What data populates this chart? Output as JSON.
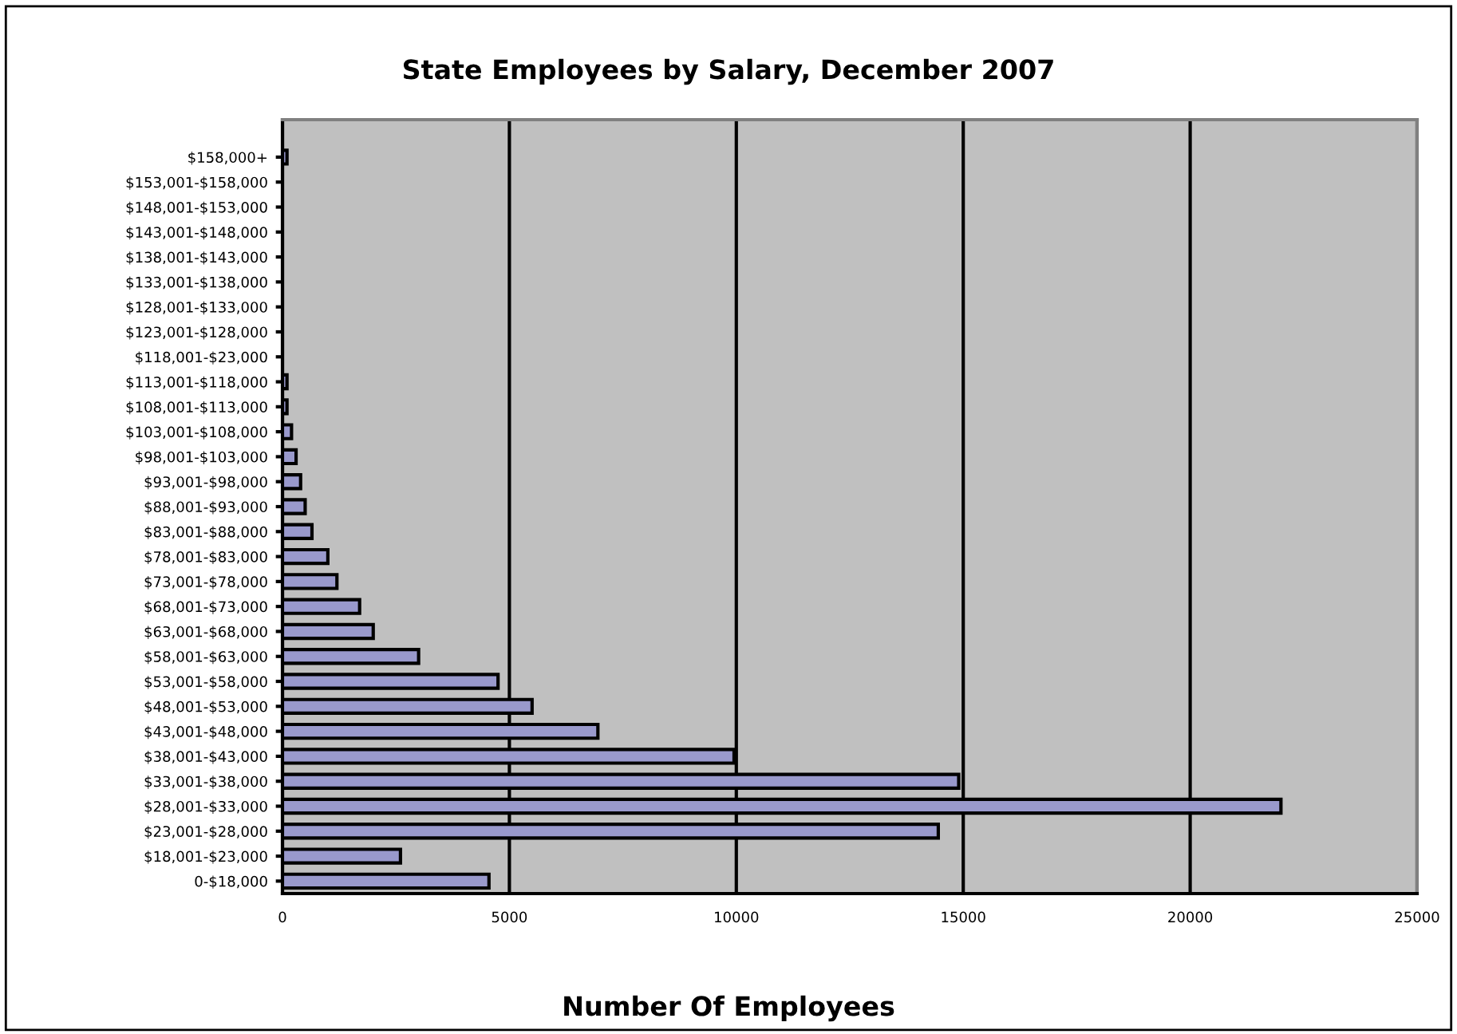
{
  "chart_data": {
    "type": "bar",
    "orientation": "horizontal",
    "title": "State Employees by Salary, December 2007",
    "xlabel": "Number Of Employees",
    "categories": [
      "$158,000+",
      "$153,001-$158,000",
      "$148,001-$153,000",
      "$143,001-$148,000",
      "$138,001-$143,000",
      "$133,001-$138,000",
      "$128,001-$133,000",
      "$123,001-$128,000",
      "$118,001-$23,000",
      "$113,001-$118,000",
      "$108,001-$113,000",
      "$103,001-$108,000",
      "$98,001-$103,000",
      "$93,001-$98,000",
      "$88,001-$93,000",
      "$83,001-$88,000",
      "$78,001-$83,000",
      "$73,001-$78,000",
      "$68,001-$73,000",
      "$63,001-$68,000",
      "$58,001-$63,000",
      "$53,001-$58,000",
      "$48,001-$53,000",
      "$43,001-$48,000",
      "$38,001-$43,000",
      "$33,001-$38,000",
      "$28,001-$33,000",
      "$23,001-$28,000",
      "$18,001-$23,000",
      "0-$18,000"
    ],
    "values": [
      100,
      null,
      null,
      null,
      null,
      null,
      null,
      null,
      null,
      100,
      100,
      200,
      300,
      400,
      500,
      650,
      1000,
      1200,
      1700,
      2000,
      3000,
      4750,
      5500,
      6950,
      9950,
      14900,
      22000,
      14450,
      2600,
      4550
    ],
    "color": "#9999cc",
    "xlim": [
      0,
      25000
    ],
    "xticks": [
      0,
      5000,
      10000,
      15000,
      20000,
      25000
    ],
    "grid": "x"
  }
}
